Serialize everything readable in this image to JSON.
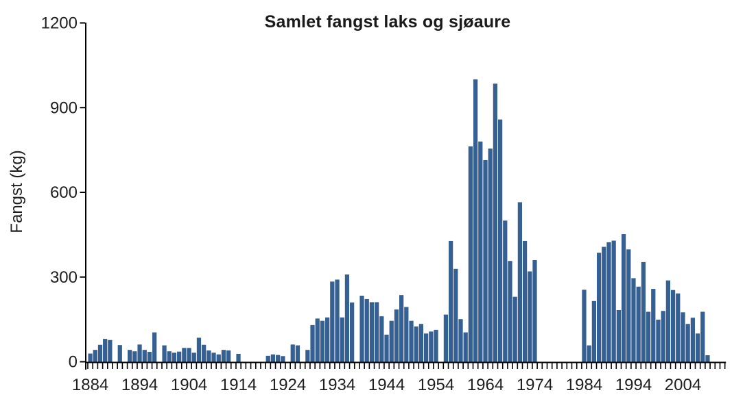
{
  "chart_data": {
    "type": "bar",
    "title": "Samlet fangst laks og sjøaure",
    "ylabel": "Fangst (kg)",
    "xlabel": "",
    "ylim": [
      0,
      1200
    ],
    "y_ticks": [
      0,
      300,
      600,
      900,
      1200
    ],
    "x_decade_labels": [
      "1884",
      "1894",
      "1904",
      "1914",
      "1924",
      "1934",
      "1944",
      "1954",
      "1964",
      "1974",
      "1984",
      "1994",
      "2004"
    ],
    "legend": "none",
    "grid": "off",
    "bar_color": "#366092",
    "axis_color": "#000000",
    "text_color": "#1f1f1f",
    "categories": [
      1884,
      1885,
      1886,
      1887,
      1888,
      1889,
      1890,
      1891,
      1892,
      1893,
      1894,
      1895,
      1896,
      1897,
      1898,
      1899,
      1900,
      1901,
      1902,
      1903,
      1904,
      1905,
      1906,
      1907,
      1908,
      1909,
      1910,
      1911,
      1912,
      1913,
      1914,
      1915,
      1916,
      1917,
      1918,
      1919,
      1920,
      1921,
      1922,
      1923,
      1924,
      1925,
      1926,
      1927,
      1928,
      1929,
      1930,
      1931,
      1932,
      1933,
      1934,
      1935,
      1936,
      1937,
      1938,
      1939,
      1940,
      1941,
      1942,
      1943,
      1944,
      1945,
      1946,
      1947,
      1948,
      1949,
      1950,
      1951,
      1952,
      1953,
      1954,
      1955,
      1956,
      1957,
      1958,
      1959,
      1960,
      1961,
      1962,
      1963,
      1964,
      1965,
      1966,
      1967,
      1968,
      1969,
      1970,
      1971,
      1972,
      1973,
      1974,
      1975,
      1976,
      1977,
      1978,
      1979,
      1980,
      1981,
      1982,
      1983,
      1984,
      1985,
      1986,
      1987,
      1988,
      1989,
      1990,
      1991,
      1992,
      1993,
      1994,
      1995,
      1996,
      1997,
      1998,
      1999,
      2000,
      2001,
      2002,
      2003,
      2004,
      2005,
      2006,
      2007,
      2008,
      2009,
      2010,
      2011,
      2012
    ],
    "values": [
      29,
      42,
      60,
      81,
      77,
      0,
      59,
      0,
      42,
      37,
      61,
      42,
      35,
      104,
      0,
      58,
      37,
      32,
      36,
      49,
      49,
      32,
      85,
      60,
      40,
      32,
      26,
      42,
      40,
      0,
      28,
      0,
      0,
      0,
      0,
      0,
      21,
      26,
      24,
      20,
      0,
      61,
      58,
      0,
      42,
      130,
      153,
      145,
      157,
      284,
      291,
      157,
      309,
      210,
      0,
      234,
      222,
      211,
      211,
      161,
      96,
      145,
      185,
      236,
      194,
      145,
      125,
      134,
      100,
      107,
      113,
      0,
      167,
      428,
      329,
      151,
      104,
      763,
      1000,
      780,
      714,
      755,
      985,
      858,
      500,
      357,
      230,
      565,
      428,
      320,
      360,
      0,
      0,
      0,
      0,
      0,
      0,
      0,
      0,
      0,
      255,
      58,
      215,
      386,
      407,
      423,
      429,
      183,
      452,
      398,
      296,
      266,
      353,
      177,
      258,
      149,
      180,
      288,
      254,
      242,
      175,
      134,
      156,
      100,
      177,
      23,
      0,
      0,
      0
    ]
  }
}
